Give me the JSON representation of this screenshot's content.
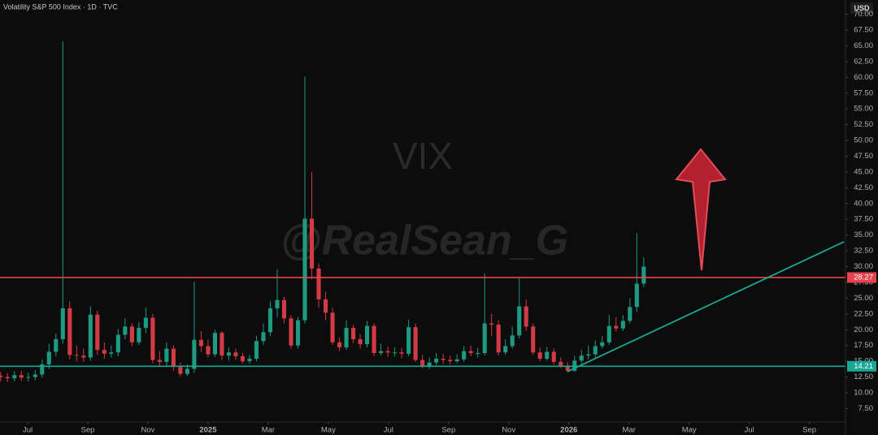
{
  "chart_data": {
    "type": "candlestick",
    "title": "Volatility S&P 500 Index · 1D · TVC",
    "currency": "USD",
    "watermark": "VIX",
    "annotation": "@RealSean_G",
    "up_color": "#1f9a82",
    "down_color": "#d23a45",
    "xlim": [
      -0.92,
      27.2
    ],
    "ylim": [
      5.37,
      72.26
    ],
    "grid": false,
    "xticks": [
      {
        "value": 0,
        "label": "Jul"
      },
      {
        "value": 2,
        "label": "Sep"
      },
      {
        "value": 4,
        "label": "Nov"
      },
      {
        "value": 6,
        "label": "2025"
      },
      {
        "value": 8,
        "label": "Mar"
      },
      {
        "value": 10,
        "label": "May"
      },
      {
        "value": 12,
        "label": "Jul"
      },
      {
        "value": 14,
        "label": "Sep"
      },
      {
        "value": 16,
        "label": "Nov"
      },
      {
        "value": 18,
        "label": "2026"
      },
      {
        "value": 20,
        "label": "Mar"
      },
      {
        "value": 22,
        "label": "May"
      },
      {
        "value": 24,
        "label": "Jul"
      },
      {
        "value": 26,
        "label": "Sep"
      }
    ],
    "yticks": [
      {
        "value": 7.5,
        "label": "7.50"
      },
      {
        "value": 10,
        "label": "10.00"
      },
      {
        "value": 12.5,
        "label": "12.50"
      },
      {
        "value": 15,
        "label": "15.00"
      },
      {
        "value": 17.5,
        "label": "17.50"
      },
      {
        "value": 20,
        "label": "20.00"
      },
      {
        "value": 22.5,
        "label": "22.50"
      },
      {
        "value": 25,
        "label": "25.00"
      },
      {
        "value": 27.5,
        "label": "27.50"
      },
      {
        "value": 30,
        "label": "30.00"
      },
      {
        "value": 32.5,
        "label": "32.50"
      },
      {
        "value": 35,
        "label": "35.00"
      },
      {
        "value": 37.5,
        "label": "37.50"
      },
      {
        "value": 40,
        "label": "40.00"
      },
      {
        "value": 42.5,
        "label": "42.50"
      },
      {
        "value": 45,
        "label": "45.00"
      },
      {
        "value": 47.5,
        "label": "47.50"
      },
      {
        "value": 50,
        "label": "50.00"
      },
      {
        "value": 52.5,
        "label": "52.50"
      },
      {
        "value": 55,
        "label": "55.00"
      },
      {
        "value": 57.5,
        "label": "57.50"
      },
      {
        "value": 60,
        "label": "60.00"
      },
      {
        "value": 62.5,
        "label": "62.50"
      },
      {
        "value": 65,
        "label": "65.00"
      },
      {
        "value": 67.5,
        "label": "67.50"
      },
      {
        "value": 70,
        "label": "70.00"
      }
    ],
    "hlines": [
      {
        "value": 28.27,
        "color": "#e8424f"
      },
      {
        "value": 14.21,
        "color": "#1aa894"
      }
    ],
    "trendline": {
      "x": [
        17.95,
        27.15
      ],
      "y": [
        13.36,
        33.94
      ],
      "color": "#1aa894"
    },
    "x": [
      -0.9,
      -0.67,
      -0.44,
      -0.21,
      0.02,
      0.25,
      0.48,
      0.71,
      0.94,
      1.17,
      1.4,
      1.63,
      1.86,
      2.09,
      2.32,
      2.55,
      2.78,
      3.01,
      3.24,
      3.47,
      3.7,
      3.93,
      4.16,
      4.39,
      4.62,
      4.85,
      5.08,
      5.31,
      5.54,
      5.77,
      6,
      6.23,
      6.46,
      6.69,
      6.92,
      7.15,
      7.38,
      7.61,
      7.84,
      8.07,
      8.3,
      8.53,
      8.76,
      8.99,
      9.22,
      9.45,
      9.68,
      9.91,
      10.14,
      10.37,
      10.6,
      10.83,
      11.06,
      11.29,
      11.52,
      11.75,
      11.98,
      12.21,
      12.44,
      12.67,
      12.9,
      13.13,
      13.36,
      13.59,
      13.82,
      14.05,
      14.28,
      14.51,
      14.74,
      14.97,
      15.2,
      15.43,
      15.66,
      15.89,
      16.12,
      16.35,
      16.58,
      16.81,
      17.04,
      17.27,
      17.5,
      17.73,
      17.96,
      18.19,
      18.42,
      18.65,
      18.88,
      19.11,
      19.34,
      19.57,
      19.8,
      20.03,
      20.26,
      20.49
    ],
    "open": [
      12.7,
      12.5,
      12.3,
      12.8,
      12.4,
      12.5,
      12.9,
      14.5,
      16.5,
      18.5,
      23.4,
      16.0,
      15.9,
      15.6,
      22.4,
      16.8,
      16.2,
      16.4,
      19.2,
      20.5,
      18.0,
      20.3,
      21.9,
      15.2,
      14.9,
      17.0,
      14.1,
      13.0,
      13.8,
      18.4,
      17.4,
      16.1,
      19.5,
      15.9,
      16.4,
      15.8,
      15.0,
      15.4,
      18.2,
      19.6,
      23.4,
      24.7,
      21.8,
      17.5,
      21.5,
      37.6,
      29.7,
      24.8,
      22.7,
      18.0,
      17.2,
      20.3,
      18.5,
      17.7,
      20.6,
      16.3,
      16.6,
      16.4,
      16.4,
      16.2,
      20.4,
      15.2,
      14.2,
      14.8,
      15.4,
      15.2,
      15.0,
      15.3,
      16.6,
      16.3,
      16.3,
      21.0,
      20.8,
      16.4,
      17.4,
      19.1,
      23.7,
      20.5,
      16.4,
      15.4,
      16.5,
      14.9,
      14.2,
      13.5,
      15.1,
      15.9,
      16.1,
      17.4,
      18.0,
      20.6,
      20.2,
      21.4,
      23.6,
      27.3
    ],
    "high": [
      13.3,
      13.1,
      13.4,
      13.5,
      13.2,
      13.6,
      15.3,
      17.8,
      19.4,
      65.7,
      24.5,
      17.5,
      17.0,
      23.7,
      23.0,
      18.0,
      17.5,
      20.1,
      21.8,
      21.0,
      21.2,
      23.5,
      22.5,
      16.6,
      18.0,
      17.5,
      14.8,
      14.5,
      27.6,
      19.8,
      18.4,
      20.0,
      19.8,
      17.2,
      17.0,
      16.3,
      16.0,
      19.0,
      21.0,
      24.5,
      29.6,
      25.2,
      22.3,
      22.0,
      60.1,
      45.0,
      30.5,
      26.0,
      23.5,
      18.8,
      21.5,
      20.8,
      19.3,
      21.4,
      21.0,
      17.8,
      17.3,
      17.2,
      17.1,
      21.6,
      21.0,
      16.0,
      15.6,
      16.3,
      16.2,
      15.9,
      16.1,
      17.4,
      17.5,
      17.1,
      28.9,
      22.5,
      21.5,
      18.5,
      20.5,
      28.3,
      24.8,
      21.0,
      17.2,
      17.3,
      17.0,
      15.6,
      14.9,
      15.9,
      16.8,
      17.5,
      18.3,
      19.0,
      22.3,
      22.0,
      22.3,
      25.0,
      35.3,
      31.5
    ],
    "low": [
      11.8,
      11.7,
      11.8,
      11.9,
      11.8,
      12.0,
      12.4,
      13.8,
      15.8,
      17.8,
      15.3,
      15.0,
      14.9,
      15.1,
      16.0,
      15.4,
      15.6,
      15.8,
      18.5,
      17.4,
      17.6,
      19.5,
      14.7,
      14.3,
      14.3,
      13.5,
      12.6,
      12.7,
      13.2,
      16.5,
      15.6,
      15.7,
      15.2,
      15.1,
      15.2,
      14.6,
      14.6,
      15.0,
      17.6,
      19.0,
      22.0,
      21.0,
      17.0,
      17.0,
      21.0,
      28.0,
      23.5,
      21.5,
      17.6,
      16.6,
      16.8,
      17.9,
      17.0,
      17.2,
      15.8,
      15.9,
      15.7,
      15.8,
      15.5,
      15.8,
      14.9,
      13.9,
      13.8,
      14.4,
      14.6,
      14.5,
      14.7,
      14.9,
      15.8,
      15.6,
      15.9,
      19.0,
      15.9,
      16.0,
      17.0,
      18.6,
      19.8,
      16.0,
      15.0,
      15.1,
      14.5,
      13.9,
      13.2,
      13.3,
      14.6,
      15.3,
      15.6,
      17.0,
      17.6,
      19.7,
      19.8,
      21.0,
      22.8,
      26.8
    ],
    "close": [
      12.5,
      12.3,
      12.8,
      12.4,
      12.5,
      12.9,
      14.5,
      16.5,
      18.5,
      23.4,
      16.0,
      15.9,
      15.6,
      22.4,
      16.8,
      16.2,
      16.4,
      19.2,
      20.5,
      18.0,
      20.3,
      21.9,
      15.2,
      14.9,
      17.0,
      14.1,
      13.0,
      13.8,
      18.4,
      17.4,
      16.1,
      19.5,
      15.9,
      16.4,
      15.8,
      15.0,
      15.4,
      18.2,
      19.6,
      23.4,
      24.7,
      21.8,
      17.5,
      21.5,
      37.6,
      29.7,
      24.8,
      22.7,
      18.0,
      17.2,
      20.3,
      18.5,
      17.7,
      20.6,
      16.3,
      16.6,
      16.4,
      16.4,
      16.2,
      20.4,
      15.2,
      14.2,
      14.8,
      15.4,
      15.2,
      15.0,
      15.3,
      16.6,
      16.3,
      16.3,
      21.0,
      20.8,
      16.4,
      17.4,
      19.1,
      23.7,
      20.5,
      16.4,
      15.4,
      16.5,
      14.9,
      14.2,
      13.5,
      15.1,
      15.9,
      16.1,
      17.4,
      18.0,
      20.6,
      20.2,
      21.4,
      23.6,
      27.3,
      30.0
    ]
  }
}
